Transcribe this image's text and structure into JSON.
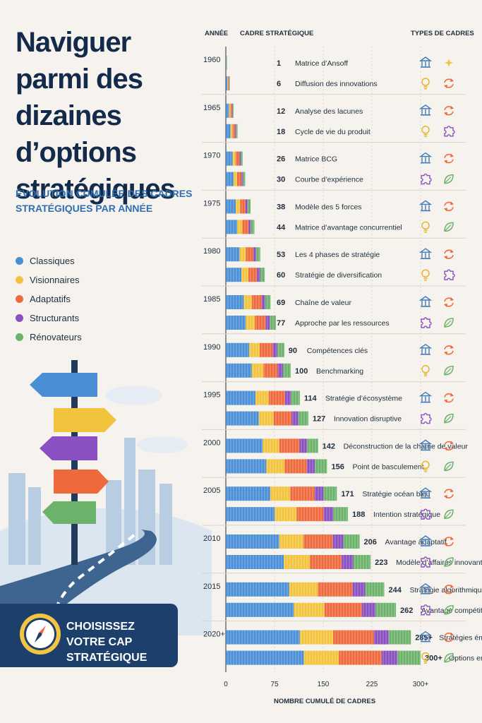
{
  "page": {
    "title": "Naviguer parmi des dizaines d’options stratégiques",
    "subtitle": "Évolution cumulée des cadres stratégiques par année",
    "cta": "CHOISISSEZ VOTRE CAP STRATÉGIQUE",
    "col_year": "ANNÉE",
    "col_framework": "CADRE STRATÉGIQUE",
    "col_types": "TYPES DE CADRES"
  },
  "colors": {
    "Classiques": "#4a8fd6",
    "Visionnaires": "#f2c43d",
    "Adaptatifs": "#ee6a3c",
    "Structurants": "#8a4fc0",
    "Rénovateurs": "#6cb26a",
    "accent": "#1c3f6c"
  },
  "legend": [
    {
      "label": "Classiques",
      "color": "#4a8fd6"
    },
    {
      "label": "Visionnaires",
      "color": "#f2c43d"
    },
    {
      "label": "Adaptatifs",
      "color": "#ee6a3c"
    },
    {
      "label": "Structurants",
      "color": "#8a4fc0"
    },
    {
      "label": "Rénovateurs",
      "color": "#6cb26a"
    }
  ],
  "chart_data": {
    "type": "bar",
    "orientation": "horizontal",
    "stacked": true,
    "xlabel": "NOMBRE CUMULÉ DE CADRES",
    "xlim": [
      0,
      300
    ],
    "xticks": [
      "0",
      "75",
      "150",
      "225",
      "300+"
    ],
    "grid": true,
    "groups": [
      {
        "year": "1960",
        "rows": [
          {
            "count": 1,
            "label": "1",
            "name": "Matrice d’Ansoff",
            "icons": [
              "pillar-icon",
              "sparkle-icon"
            ]
          },
          {
            "count": 6,
            "label": "6",
            "name": "Diffusion des innovations",
            "icons": [
              "bulb-icon",
              "cycle-icon"
            ]
          }
        ]
      },
      {
        "year": "1965",
        "rows": [
          {
            "count": 12,
            "label": "12",
            "name": "Analyse des lacunes",
            "icons": [
              "pillar-icon",
              "cycle-icon"
            ]
          },
          {
            "count": 18,
            "label": "18",
            "name": "Cycle de vie du produit",
            "icons": [
              "bulb-icon",
              "puzzle-icon"
            ]
          }
        ]
      },
      {
        "year": "1970",
        "rows": [
          {
            "count": 26,
            "label": "26",
            "name": "Matrice BCG",
            "icons": [
              "pillar-icon",
              "cycle-icon"
            ]
          },
          {
            "count": 30,
            "label": "30",
            "name": "Courbe d’expérience",
            "icons": [
              "puzzle-icon",
              "leaf-icon"
            ]
          }
        ]
      },
      {
        "year": "1975",
        "rows": [
          {
            "count": 38,
            "label": "38",
            "name": "Modèle des 5 forces",
            "icons": [
              "pillar-icon",
              "cycle-icon"
            ]
          },
          {
            "count": 44,
            "label": "44",
            "name": "Matrice d’avantage concurrentiel",
            "icons": [
              "bulb-icon",
              "leaf-icon"
            ]
          }
        ]
      },
      {
        "year": "1980",
        "rows": [
          {
            "count": 53,
            "label": "53",
            "name": "Les 4 phases de stratégie",
            "icons": [
              "pillar-icon",
              "cycle-icon"
            ]
          },
          {
            "count": 60,
            "label": "60",
            "name": "Stratégie de diversification",
            "icons": [
              "bulb-icon",
              "puzzle-icon"
            ]
          }
        ]
      },
      {
        "year": "1985",
        "rows": [
          {
            "count": 69,
            "label": "69",
            "name": "Chaîne de valeur",
            "icons": [
              "pillar-icon",
              "cycle-icon"
            ]
          },
          {
            "count": 77,
            "label": "77",
            "name": "Approche par les ressources",
            "icons": [
              "puzzle-icon",
              "leaf-icon"
            ]
          }
        ]
      },
      {
        "year": "1990",
        "rows": [
          {
            "count": 90,
            "label": "90",
            "name": "Compétences clés",
            "icons": [
              "pillar-icon",
              "cycle-icon"
            ]
          },
          {
            "count": 100,
            "label": "100",
            "name": "Benchmarking",
            "icons": [
              "bulb-icon",
              "leaf-icon"
            ]
          }
        ]
      },
      {
        "year": "1995",
        "rows": [
          {
            "count": 114,
            "label": "114",
            "name": "Stratégie d’écosystème",
            "icons": [
              "pillar-icon",
              "cycle-icon"
            ]
          },
          {
            "count": 127,
            "label": "127",
            "name": "Innovation disruptive",
            "icons": [
              "puzzle-icon",
              "leaf-icon"
            ]
          }
        ]
      },
      {
        "year": "2000",
        "rows": [
          {
            "count": 142,
            "label": "142",
            "name": "Déconstruction de la chaîne de valeur",
            "icons": [
              "pillar-icon",
              "cycle-icon"
            ]
          },
          {
            "count": 156,
            "label": "156",
            "name": "Point de basculement",
            "icons": [
              "bulb-icon",
              "leaf-icon"
            ]
          }
        ]
      },
      {
        "year": "2005",
        "rows": [
          {
            "count": 171,
            "label": "171",
            "name": "Stratégie océan bleu",
            "icons": [
              "pillar-icon",
              "cycle-icon"
            ]
          },
          {
            "count": 188,
            "label": "188",
            "name": "Intention stratégique",
            "icons": [
              "puzzle-icon",
              "leaf-icon"
            ]
          }
        ]
      },
      {
        "year": "2010",
        "rows": [
          {
            "count": 206,
            "label": "206",
            "name": "Avantage adaptatif",
            "icons": [
              "pillar-icon",
              "cycle-icon"
            ]
          },
          {
            "count": 223,
            "label": "223",
            "name": "Modèle d’affaires innovant",
            "icons": [
              "puzzle-icon",
              "leaf-icon"
            ]
          }
        ]
      },
      {
        "year": "2015",
        "rows": [
          {
            "count": 244,
            "label": "244",
            "name": "Stratégie algorithmique",
            "icons": [
              "pillar-icon",
              "cycle-icon"
            ]
          },
          {
            "count": 262,
            "label": "262",
            "name": "Avantage compétitif transitoire",
            "icons": [
              "puzzle-icon",
              "leaf-icon"
            ]
          }
        ]
      },
      {
        "year": "2020+",
        "rows": [
          {
            "count": 285,
            "label": "285+",
            "name": "Stratégies émergentes",
            "icons": [
              "pillar-icon",
              "cycle-icon"
            ]
          },
          {
            "count": 300,
            "label": "300+",
            "name": "Options en expansion",
            "icons": [
              "bulb-icon",
              "leaf-icon"
            ]
          }
        ]
      }
    ]
  }
}
